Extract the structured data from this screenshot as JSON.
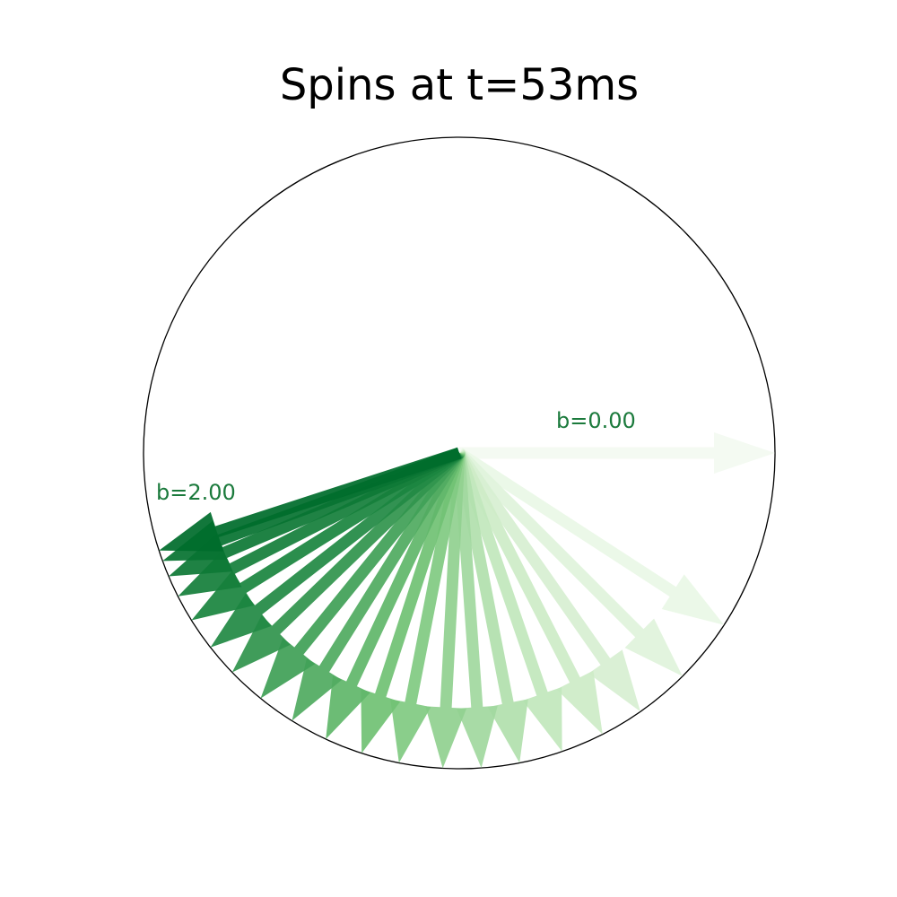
{
  "chart_data": {
    "type": "polar-quiver",
    "title": "Spins at t=53ms",
    "colormap": "Greens",
    "annotation_color": "#1b7a3c",
    "unit_circle": true,
    "grid": false,
    "series": [
      {
        "b": 0.0,
        "angle_deg": 0,
        "magnitude": 1.0
      },
      {
        "b": 0.1,
        "angle_deg": -33,
        "magnitude": 1.0
      },
      {
        "b": 0.2,
        "angle_deg": -45,
        "magnitude": 1.0
      },
      {
        "b": 0.3,
        "angle_deg": -55,
        "magnitude": 1.0
      },
      {
        "b": 0.4,
        "angle_deg": -63,
        "magnitude": 1.0
      },
      {
        "b": 0.5,
        "angle_deg": -71,
        "magnitude": 1.0
      },
      {
        "b": 0.6,
        "angle_deg": -79,
        "magnitude": 1.0
      },
      {
        "b": 0.7,
        "angle_deg": -86,
        "magnitude": 1.0
      },
      {
        "b": 0.8,
        "angle_deg": -93,
        "magnitude": 1.0
      },
      {
        "b": 0.9,
        "angle_deg": -101,
        "magnitude": 1.0
      },
      {
        "b": 1.0,
        "angle_deg": -108,
        "magnitude": 1.0
      },
      {
        "b": 1.1,
        "angle_deg": -115,
        "magnitude": 1.0
      },
      {
        "b": 1.2,
        "angle_deg": -122,
        "magnitude": 1.0
      },
      {
        "b": 1.3,
        "angle_deg": -129,
        "magnitude": 1.0
      },
      {
        "b": 1.4,
        "angle_deg": -136,
        "magnitude": 1.0
      },
      {
        "b": 1.5,
        "angle_deg": -142,
        "magnitude": 1.0
      },
      {
        "b": 1.6,
        "angle_deg": -148,
        "magnitude": 1.0
      },
      {
        "b": 1.7,
        "angle_deg": -153,
        "magnitude": 1.0
      },
      {
        "b": 1.8,
        "angle_deg": -157,
        "magnitude": 1.0
      },
      {
        "b": 1.9,
        "angle_deg": -160,
        "magnitude": 1.0
      },
      {
        "b": 2.0,
        "angle_deg": -162,
        "magnitude": 1.0
      }
    ],
    "annotations": [
      {
        "text": "b=0.00",
        "b": 0.0
      },
      {
        "text": "b=2.00",
        "b": 2.0
      }
    ]
  }
}
